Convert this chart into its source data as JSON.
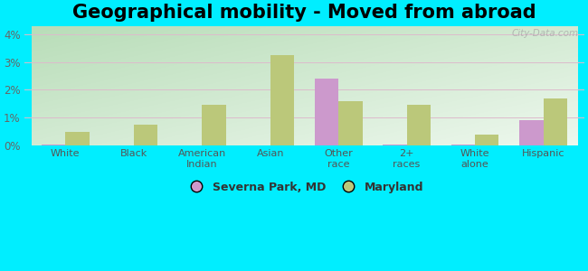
{
  "title": "Geographical mobility - Moved from abroad",
  "categories": [
    "White",
    "Black",
    "American\nIndian",
    "Asian",
    "Other\nrace",
    "2+\nraces",
    "White\nalone",
    "Hispanic"
  ],
  "severna_park": [
    0.05,
    0.0,
    0.0,
    0.0,
    2.4,
    0.05,
    0.05,
    0.9
  ],
  "maryland": [
    0.5,
    0.75,
    1.45,
    3.25,
    1.6,
    1.45,
    0.4,
    1.7
  ],
  "severna_color": "#cc99cc",
  "maryland_color": "#bbc87a",
  "ylim": [
    0,
    4.3
  ],
  "yticks": [
    0,
    1,
    2,
    3,
    4
  ],
  "ytick_labels": [
    "0%",
    "1%",
    "2%",
    "3%",
    "4%"
  ],
  "bar_width": 0.35,
  "fig_bg": "#00EEFF",
  "grad_topleft": "#b8ddb8",
  "grad_bottomright": "#eef8ee",
  "legend_severna": "Severna Park, MD",
  "legend_maryland": "Maryland",
  "title_fontsize": 15,
  "watermark": "City-Data.com"
}
